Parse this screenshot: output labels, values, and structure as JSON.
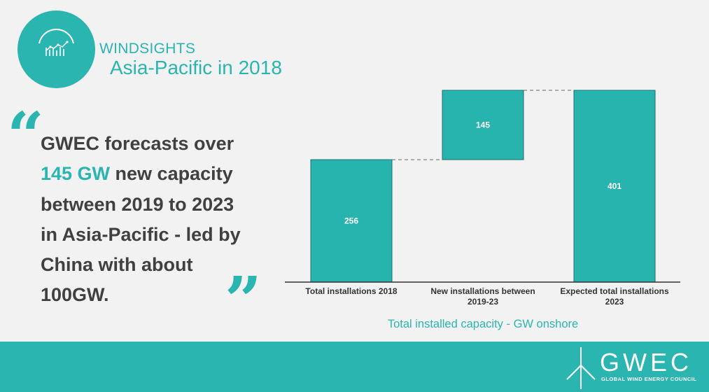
{
  "header": {
    "brand": "WINDSIGHTS",
    "subtitle": "Asia-Pacific in 2018"
  },
  "quote": {
    "open_mark": "“",
    "close_mark": "”",
    "line1": "GWEC forecasts over",
    "highlight": "145 GW",
    "line2_rest": " new capacity",
    "line3": "between 2019 to 2023",
    "line4": "in Asia-Pacific - led by",
    "line5": "China with about",
    "line6": "100GW."
  },
  "colors": {
    "accent": "#2bb5b0",
    "bar": "#27b3ae",
    "text": "#404040",
    "background": "#f2f2f2"
  },
  "chart_data": {
    "type": "bar",
    "subtype": "waterfall",
    "title": "Total installed capacity - GW onshore",
    "categories": [
      "Total installations 2018",
      "New installations between 2019-23",
      "Expected total installations 2023"
    ],
    "category_lines": [
      [
        "Total installations 2018"
      ],
      [
        "New installations between",
        "2019-23"
      ],
      [
        "Expected total installations",
        "2023"
      ]
    ],
    "values": [
      256,
      145,
      401
    ],
    "labels": [
      "256",
      "145",
      "401"
    ],
    "ylim": [
      0,
      401
    ],
    "grid": false
  },
  "footer": {
    "org_name": "GWEC",
    "org_full": "GLOBAL WIND ENERGY COUNCIL"
  }
}
